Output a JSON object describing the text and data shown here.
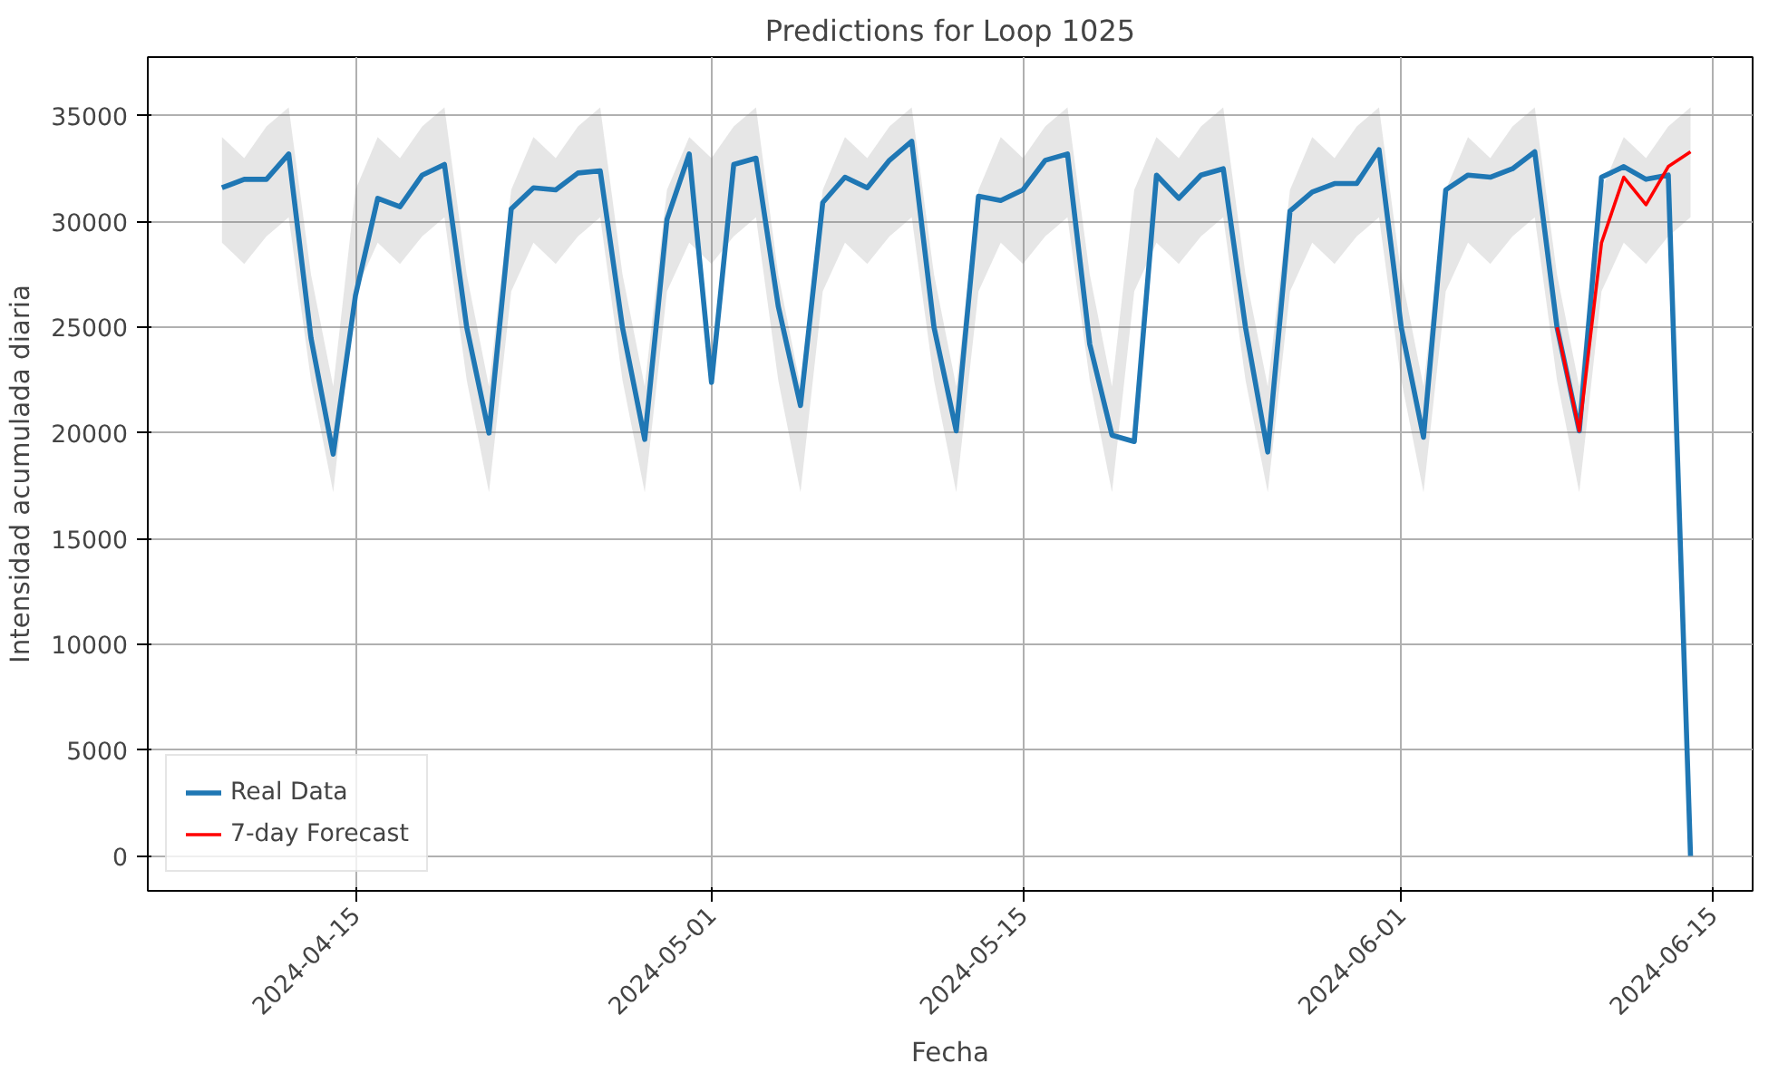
{
  "chart_data": {
    "type": "line",
    "title": "Predictions for Loop 1025",
    "xlabel": "Fecha",
    "ylabel": "Intensidad acumulada diaria",
    "x": [
      "2024-04-09",
      "2024-04-10",
      "2024-04-11",
      "2024-04-12",
      "2024-04-13",
      "2024-04-14",
      "2024-04-15",
      "2024-04-16",
      "2024-04-17",
      "2024-04-18",
      "2024-04-19",
      "2024-04-20",
      "2024-04-21",
      "2024-04-22",
      "2024-04-23",
      "2024-04-24",
      "2024-04-25",
      "2024-04-26",
      "2024-04-27",
      "2024-04-28",
      "2024-04-29",
      "2024-04-30",
      "2024-05-01",
      "2024-05-02",
      "2024-05-03",
      "2024-05-04",
      "2024-05-05",
      "2024-05-06",
      "2024-05-07",
      "2024-05-08",
      "2024-05-09",
      "2024-05-10",
      "2024-05-11",
      "2024-05-12",
      "2024-05-13",
      "2024-05-14",
      "2024-05-15",
      "2024-05-16",
      "2024-05-17",
      "2024-05-18",
      "2024-05-19",
      "2024-05-20",
      "2024-05-21",
      "2024-05-22",
      "2024-05-23",
      "2024-05-24",
      "2024-05-25",
      "2024-05-26",
      "2024-05-27",
      "2024-05-28",
      "2024-05-29",
      "2024-05-30",
      "2024-05-31",
      "2024-06-01",
      "2024-06-02",
      "2024-06-03",
      "2024-06-04",
      "2024-06-05",
      "2024-06-06",
      "2024-06-07",
      "2024-06-08",
      "2024-06-09",
      "2024-06-10",
      "2024-06-11",
      "2024-06-12",
      "2024-06-13",
      "2024-06-14"
    ],
    "series": [
      {
        "name": "Real Data",
        "color": "#1f77b4",
        "values": [
          31600,
          32000,
          32000,
          33200,
          24500,
          19000,
          26500,
          31100,
          30700,
          32200,
          32700,
          25000,
          20000,
          30600,
          31600,
          31500,
          32300,
          32400,
          25000,
          19700,
          30100,
          33200,
          22400,
          32700,
          33000,
          26000,
          21300,
          30900,
          32100,
          31600,
          32900,
          33800,
          25000,
          20100,
          31200,
          31000,
          31500,
          32900,
          33200,
          24200,
          19900,
          19600,
          32200,
          31100,
          32200,
          32500,
          25000,
          19100,
          30500,
          31400,
          31800,
          31800,
          33400,
          25000,
          19800,
          31500,
          32200,
          32100,
          32500,
          33300,
          25000,
          20100,
          32100,
          32600,
          32000,
          32200,
          0
        ],
        "lower": [
          29000,
          28000,
          29300,
          30200,
          22500,
          17200,
          26700,
          29000,
          28000,
          29300,
          30200,
          22500,
          17200,
          26700,
          29000,
          28000,
          29300,
          30200,
          22500,
          17200,
          26700,
          29000,
          28000,
          29300,
          30200,
          22500,
          17200,
          26700,
          29000,
          28000,
          29300,
          30200,
          22500,
          17200,
          26700,
          29000,
          28000,
          29300,
          30200,
          22500,
          17200,
          26700,
          29000,
          28000,
          29300,
          30200,
          22500,
          17200,
          26700,
          29000,
          28000,
          29300,
          30200,
          22500,
          17200,
          26700,
          29000,
          28000,
          29300,
          30200,
          22500,
          17200,
          26700,
          29000,
          28000,
          29300,
          30200
        ],
        "upper": [
          34000,
          33000,
          34500,
          35400,
          27500,
          22200,
          31500,
          34000,
          33000,
          34500,
          35400,
          27500,
          22200,
          31500,
          34000,
          33000,
          34500,
          35400,
          27500,
          22200,
          31500,
          34000,
          33000,
          34500,
          35400,
          27500,
          22200,
          31500,
          34000,
          33000,
          34500,
          35400,
          27500,
          22200,
          31500,
          34000,
          33000,
          34500,
          35400,
          27500,
          22200,
          31500,
          34000,
          33000,
          34500,
          35400,
          27500,
          22200,
          31500,
          34000,
          33000,
          34500,
          35400,
          27500,
          22200,
          31500,
          34000,
          33000,
          34500,
          35400,
          27500,
          22200,
          31500,
          34000,
          33000,
          34500,
          35400
        ]
      },
      {
        "name": "7-day Forecast",
        "color": "#ff0000",
        "x": [
          "2024-06-08",
          "2024-06-09",
          "2024-06-10",
          "2024-06-11",
          "2024-06-12",
          "2024-06-13",
          "2024-06-14"
        ],
        "values": [
          25000,
          20100,
          29000,
          32100,
          30800,
          32600,
          33300
        ]
      }
    ],
    "xlim": [
      "2024-04-05T16:00",
      "2024-06-16T19:00"
    ],
    "xticks": [
      "2024-04-15",
      "2024-05-01",
      "2024-05-15",
      "2024-06-01",
      "2024-06-15"
    ],
    "ylim": [
      -1650,
      37780
    ],
    "yticks": [
      0,
      5000,
      10000,
      15000,
      20000,
      25000,
      30000,
      35000
    ],
    "grid": true,
    "legend": "bottom left",
    "line_style": "solid"
  }
}
